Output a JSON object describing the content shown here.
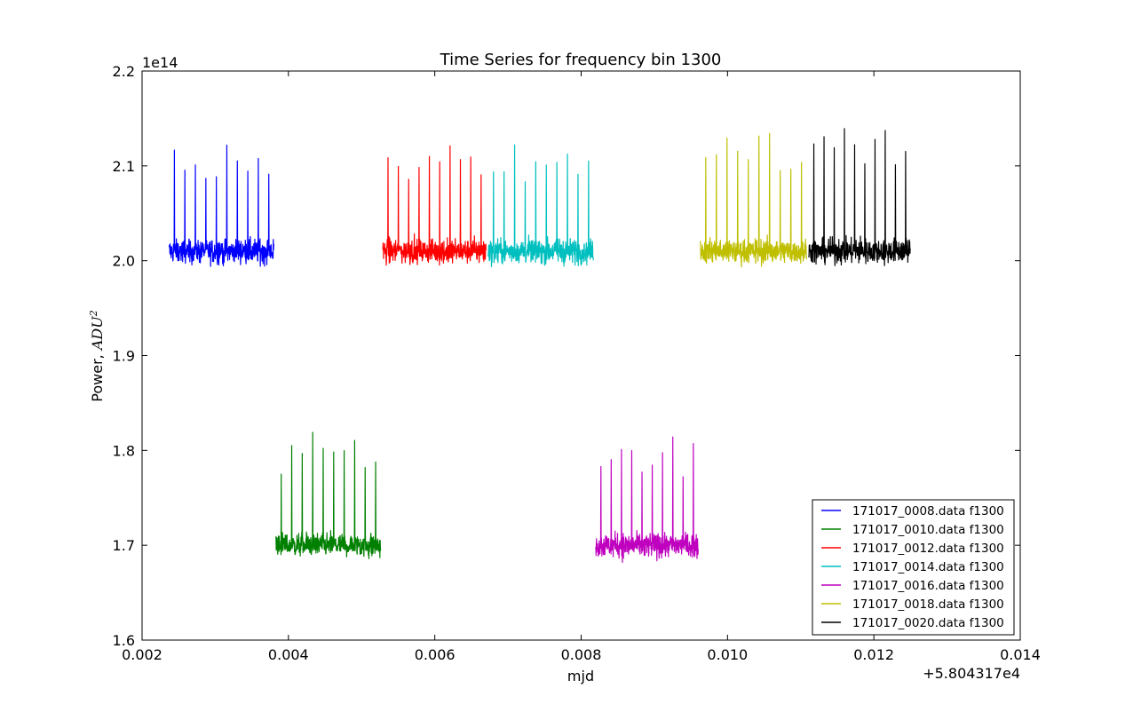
{
  "chart_data": {
    "type": "line",
    "title": "Time Series for frequency bin 1300",
    "xlabel": "mjd",
    "ylabel_text": "Power, ",
    "ylabel_math": "ADU",
    "ylabel_sup": "2",
    "x_offset_label": "+5.804317e4",
    "y_exponent_label": "1e14",
    "xlim": [
      0.002,
      0.014
    ],
    "ylim": [
      1.6,
      2.2
    ],
    "x_ticks": [
      0.002,
      0.004,
      0.006,
      0.008,
      0.01,
      0.012,
      0.014
    ],
    "x_tick_labels": [
      "0.002",
      "0.004",
      "0.006",
      "0.008",
      "0.010",
      "0.012",
      "0.014"
    ],
    "y_ticks": [
      1.6,
      1.7,
      1.8,
      1.9,
      2.0,
      2.1,
      2.2
    ],
    "y_tick_labels": [
      "1.6",
      "1.7",
      "1.8",
      "1.9",
      "2.0",
      "2.1",
      "2.2"
    ],
    "grid": false,
    "legend_position": "lower-right",
    "series": [
      {
        "name": "171017_0008.data f1300",
        "color": "#0000ff",
        "x_start": 0.00237,
        "x_end": 0.0038,
        "baseline": 2.01,
        "noise": 0.014,
        "spike_peak": 2.133,
        "spikes": 10
      },
      {
        "name": "171017_0010.data f1300",
        "color": "#008000",
        "x_start": 0.00383,
        "x_end": 0.00526,
        "baseline": 1.7,
        "noise": 0.014,
        "spike_peak": 1.82,
        "spikes": 10
      },
      {
        "name": "171017_0012.data f1300",
        "color": "#ff0000",
        "x_start": 0.00529,
        "x_end": 0.0067,
        "baseline": 2.01,
        "noise": 0.014,
        "spike_peak": 2.131,
        "spikes": 10
      },
      {
        "name": "171017_0014.data f1300",
        "color": "#00bfbf",
        "x_start": 0.00673,
        "x_end": 0.00817,
        "baseline": 2.01,
        "noise": 0.014,
        "spike_peak": 2.123,
        "spikes": 10
      },
      {
        "name": "171017_0016.data f1300",
        "color": "#bf00bf",
        "x_start": 0.0082,
        "x_end": 0.0096,
        "baseline": 1.7,
        "noise": 0.014,
        "spike_peak": 1.815,
        "spikes": 10
      },
      {
        "name": "171017_0018.data f1300",
        "color": "#bfbf00",
        "x_start": 0.00963,
        "x_end": 0.01108,
        "baseline": 2.01,
        "noise": 0.014,
        "spike_peak": 2.138,
        "spikes": 10
      },
      {
        "name": "171017_0020.data f1300",
        "color": "#000000",
        "x_start": 0.01111,
        "x_end": 0.0125,
        "baseline": 2.01,
        "noise": 0.014,
        "spike_peak": 2.147,
        "spikes": 10
      }
    ]
  }
}
